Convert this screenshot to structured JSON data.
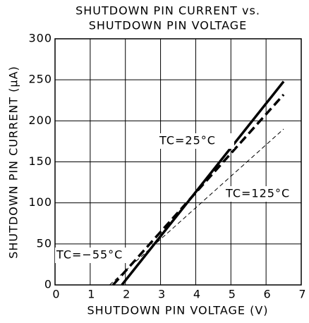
{
  "chart_data": {
    "type": "line",
    "title": [
      "SHUTDOWN PIN CURRENT vs.",
      "SHUTDOWN PIN VOLTAGE"
    ],
    "xlabel": "SHUTDOWN PIN VOLTAGE (V)",
    "ylabel": "SHUTDOWN PIN CURRENT (μA)",
    "xlim": [
      0,
      7
    ],
    "xticks": [
      0,
      1,
      2,
      3,
      4,
      5,
      6,
      7
    ],
    "ylim": [
      0,
      300
    ],
    "yticks": [
      0,
      50,
      100,
      150,
      200,
      250,
      300
    ],
    "grid": true,
    "series": [
      {
        "name": "TC=25°C",
        "color": "#000",
        "style": "solid",
        "x": [
          1.9,
          6.5
        ],
        "values": [
          0,
          248
        ]
      },
      {
        "name": "TC=−55°C",
        "color": "#000",
        "style": "dashed",
        "x": [
          1.65,
          6.5
        ],
        "values": [
          0,
          232
        ]
      },
      {
        "name": "TC=125°C",
        "color": "#000",
        "style": "thin-dashed",
        "x": [
          1.55,
          6.5
        ],
        "values": [
          0,
          190
        ]
      }
    ]
  }
}
